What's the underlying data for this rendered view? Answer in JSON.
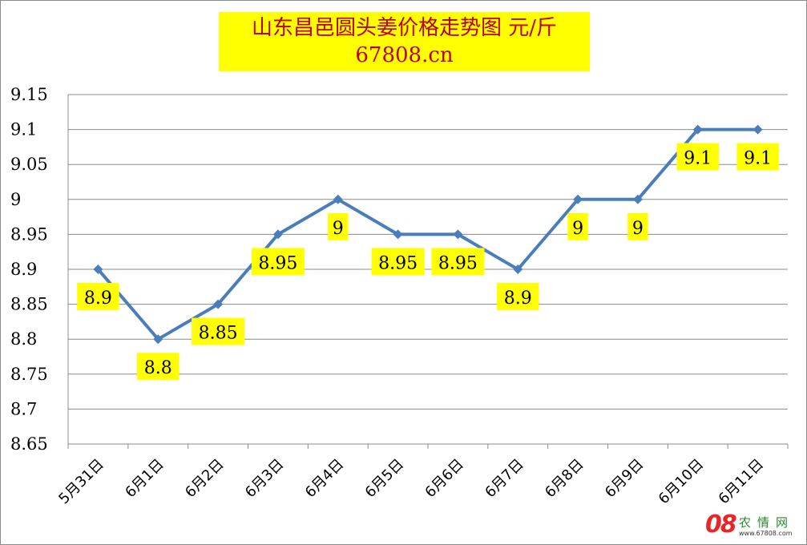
{
  "title_line1": "山东昌邑圆头姜价格走势图  元/斤",
  "title_line2": "67808.cn",
  "chart_data": {
    "type": "line",
    "title": "山东昌邑圆头姜价格走势图  元/斤",
    "subtitle": "67808.cn",
    "categories": [
      "5月31日",
      "6月1日",
      "6月2日",
      "6月3日",
      "6月4日",
      "6月5日",
      "6月6日",
      "6月7日",
      "6月8日",
      "6月9日",
      "6月10日",
      "6月11日"
    ],
    "values": [
      8.9,
      8.8,
      8.85,
      8.95,
      9,
      8.95,
      8.95,
      8.9,
      9,
      9,
      9.1,
      9.1
    ],
    "data_labels": [
      "8.9",
      "8.8",
      "8.85",
      "8.95",
      "9",
      "8.95",
      "8.95",
      "8.9",
      "9",
      "9",
      "9.1",
      "9.1"
    ],
    "y_ticks": [
      "8.65",
      "8.7",
      "8.75",
      "8.8",
      "8.85",
      "8.9",
      "8.95",
      "9",
      "9.05",
      "9.1",
      "9.15"
    ],
    "ylim": [
      8.65,
      9.15
    ],
    "grid": true,
    "legend": "none",
    "colors": {
      "line": "#4a7ebb",
      "label_bg": "#ffff00",
      "title_text": "#c00000",
      "grid": "#8c8c8c"
    }
  },
  "watermark": {
    "big": "08",
    "cn": "农情网",
    "url": "www.67808.com"
  }
}
